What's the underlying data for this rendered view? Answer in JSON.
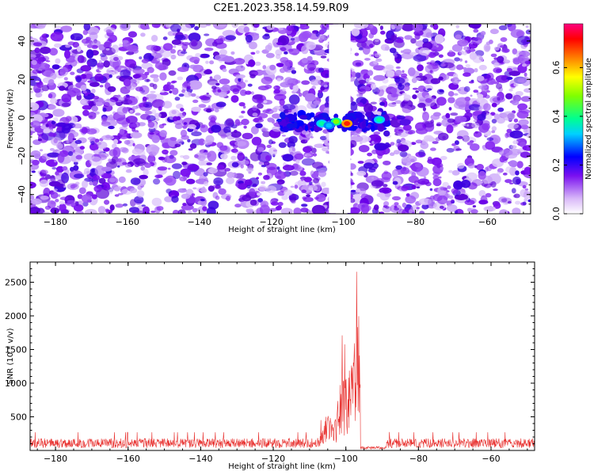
{
  "title": "C2E1.2023.358.14.59.R09",
  "chart_data": [
    {
      "type": "heatmap",
      "xlabel": "Height of straight line (km)",
      "ylabel": "Frequency (Hz)",
      "xlim": [
        -187,
        -48
      ],
      "ylim": [
        -50,
        49
      ],
      "xticks": [
        -180,
        -160,
        -140,
        -120,
        -100,
        -80,
        -60
      ],
      "yticks": [
        -40,
        -20,
        0,
        20,
        40
      ],
      "gap_x_range": [
        -104,
        -98
      ],
      "description_features": {
        "background_noise": "speckled purple/violet noise over whole panel",
        "signal_band_frequency_hz": [
          -6,
          2
        ],
        "signal_band_x_range_km": [
          -118,
          -88
        ],
        "hotspots": [
          {
            "x": -99,
            "y": -3,
            "amplitude": 0.75
          },
          {
            "x": -102,
            "y": -2,
            "amplitude": 0.5
          },
          {
            "x": -106,
            "y": -3,
            "amplitude": 0.45
          },
          {
            "x": -90,
            "y": -1,
            "amplitude": 0.35
          },
          {
            "x": -104,
            "y": -4,
            "amplitude": 0.3
          }
        ]
      },
      "colorbar": {
        "label": "Normalized spectral amplitude",
        "range": [
          0,
          0.78
        ],
        "ticks": [
          0.0,
          0.2,
          0.4,
          0.6
        ]
      }
    },
    {
      "type": "line",
      "xlabel": "Height of straight line (km)",
      "ylabel": "SNR (10 * v/v)",
      "xlim": [
        -187,
        -48
      ],
      "ylim": [
        0,
        2800
      ],
      "xticks": [
        -180,
        -160,
        -140,
        -120,
        -100,
        -80,
        -60
      ],
      "yticks": [
        500,
        1000,
        1500,
        2000,
        2500
      ],
      "color": "#e8302e",
      "baseline_level": 150,
      "features": [
        {
          "x": -105,
          "peak": 450
        },
        {
          "x": -101,
          "peak": 950
        },
        {
          "x": -100,
          "peak": 900
        },
        {
          "x": -98,
          "peak": 1450
        },
        {
          "x": -97,
          "peak": 2800
        },
        {
          "x": -96.5,
          "peak": 2300
        },
        {
          "x": -92,
          "peak": 400
        }
      ]
    }
  ]
}
